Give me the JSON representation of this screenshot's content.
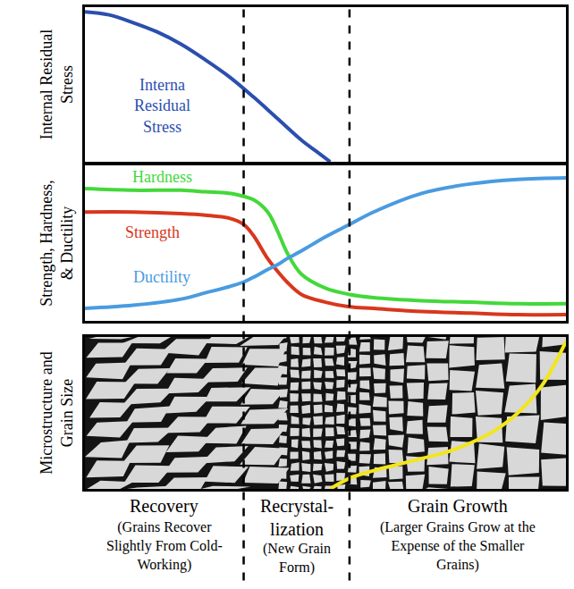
{
  "chart_data": [
    {
      "type": "line",
      "y_label": "Internal Residual Stress",
      "xlim": [
        0,
        100
      ],
      "ylim": [
        0,
        100
      ],
      "tick_labels": false,
      "x": [
        0,
        5,
        10,
        15,
        20,
        25,
        30,
        35,
        40,
        45,
        48,
        51
      ],
      "series": [
        {
          "name": "Interna Residual Stress",
          "color": "#2b4fae",
          "values": [
            97,
            95,
            90,
            84,
            76,
            66,
            55,
            42,
            28,
            14,
            7,
            0
          ]
        }
      ]
    },
    {
      "type": "line",
      "y_label": "Strength, Hardness, & Ductility",
      "xlim": [
        0,
        100
      ],
      "ylim": [
        0,
        100
      ],
      "tick_labels": false,
      "x": [
        0,
        10,
        20,
        25,
        30,
        33,
        35,
        38,
        40,
        42,
        45,
        50,
        55,
        60,
        70,
        80,
        90,
        100
      ],
      "series": [
        {
          "name": "Hardness",
          "color": "#44d83a",
          "values": [
            85,
            84,
            84,
            83,
            82,
            80,
            78,
            70,
            58,
            44,
            30,
            21,
            17,
            15,
            13,
            12,
            11,
            11
          ]
        },
        {
          "name": "Strength",
          "color": "#d8371c",
          "values": [
            70,
            70,
            69,
            68,
            66,
            62,
            55,
            40,
            32,
            25,
            17,
            12,
            9,
            8,
            6,
            5,
            4,
            4
          ]
        },
        {
          "name": "Ductility",
          "color": "#4a9be0",
          "values": [
            8,
            10,
            14,
            18,
            22,
            25,
            28,
            33,
            36,
            40,
            45,
            54,
            62,
            70,
            82,
            88,
            91,
            92
          ]
        }
      ]
    },
    {
      "type": "line",
      "y_label": "Microstructure and Grain Size",
      "xlim": [
        0,
        100
      ],
      "ylim": [
        0,
        100
      ],
      "tick_labels": false,
      "x": [
        51,
        55,
        60,
        65,
        70,
        75,
        80,
        85,
        90,
        95,
        100
      ],
      "series": [
        {
          "color": "#f2e61c",
          "values": [
            0,
            7,
            12,
            16,
            20,
            24,
            30,
            38,
            50,
            68,
            97
          ]
        }
      ]
    }
  ],
  "phases": [
    {
      "name": "Recovery",
      "description": "(Grains Recover Slightly From Cold-Working)",
      "start": 0,
      "end": 33
    },
    {
      "name": "Recrystal-lization",
      "description": "(New Grain Form)",
      "start": 33,
      "end": 55
    },
    {
      "name": "Grain Growth",
      "description": "(Larger Grains Grow at the Expense of the Smaller Grains)",
      "start": 55,
      "end": 100
    }
  ]
}
